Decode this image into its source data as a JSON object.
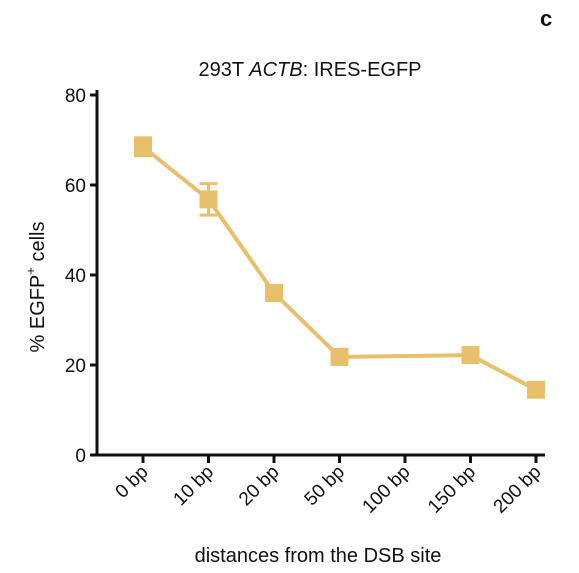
{
  "panel_letter": "c",
  "chart_data": {
    "type": "line",
    "title_prefix": "293T ",
    "title_gene": "ACTB",
    "title_suffix": ": IRES-EGFP",
    "categories": [
      "0 bp",
      "10 bp",
      "20 bp",
      "50 bp",
      "100 bp",
      "150 bp",
      "200 bp"
    ],
    "series": [
      {
        "x": [
          "0 bp",
          "10 bp",
          "20 bp",
          "50 bp",
          "150 bp",
          "200 bp"
        ],
        "values": [
          68.5,
          56.8,
          36.0,
          21.8,
          22.2,
          14.5
        ],
        "error": [
          2.0,
          3.5,
          1.2,
          1.0,
          1.2,
          0.9
        ],
        "color": "#E8C06C"
      }
    ],
    "y_ticks": [
      "0",
      "20",
      "40",
      "60",
      "80"
    ],
    "ylim": [
      0,
      80
    ],
    "ylabel_prefix": "% EGFP",
    "ylabel_sup": "+",
    "ylabel_suffix": " cells",
    "xlabel": "distances from the DSB site",
    "grid": false,
    "legend": "none"
  }
}
